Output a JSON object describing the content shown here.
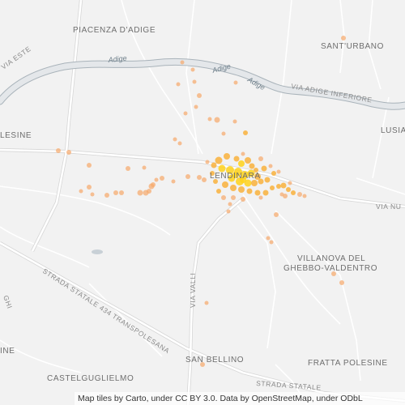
{
  "map": {
    "labels": {
      "piacenza": "PIACENZA D'ADIGE",
      "via_este": "VIA ESTE",
      "sant_urbano": "SANT'URBANO",
      "adige_1": "Adige",
      "adige_2": "Adige",
      "adige_3": "Adige",
      "via_adige_inferiore": "VIA ADIGE INFERIORE",
      "lusia": "LUSIA",
      "lesine": "LESINE",
      "lendinara": "LENDINARA",
      "via_nu": "VIA NU",
      "villanova_1": "VILLANOVA DEL",
      "villanova_2": "GHEBBO-VALDENTRO",
      "via_valli": "VIA VALLI",
      "strada_434": "STRADA STATALE 434 TRANSPOLESANA",
      "ghi": "GHI",
      "ine": "INE",
      "san_bellino": "SAN BELLINO",
      "fratta": "FRATTA POLESINE",
      "castelguglielmo": "CASTELGUGLIELMO",
      "strada_stata": "STRADA STATALE"
    },
    "colors": {
      "background": "#f2f2f2",
      "road": "#ffffff",
      "road_casing": "#d6d6d6",
      "river": "#dfe3e6",
      "river_edge": "#a9b3ba",
      "point_light": "#f7a86a",
      "point_mid": "#f9b23c",
      "point_hot": "#ffd21a"
    },
    "attribution": "Map tiles by Carto, under CC BY 3.0. Data by OpenStreetMap, under ODbL"
  }
}
